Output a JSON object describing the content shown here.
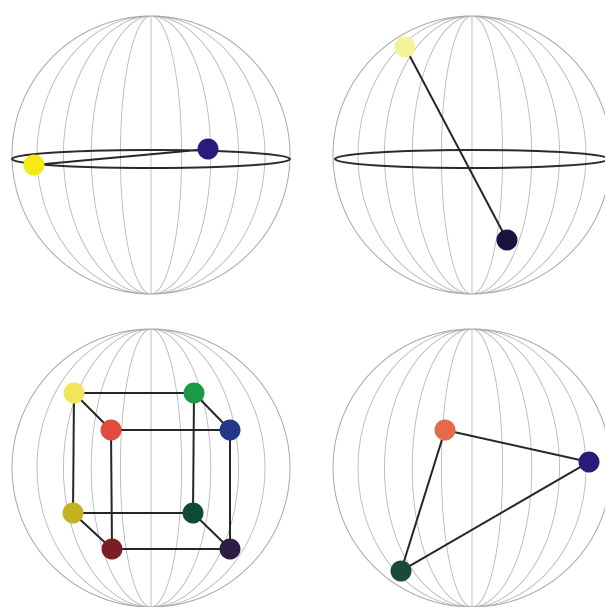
{
  "panels": [
    {
      "id": "top-left",
      "show_equator": true,
      "nodes": [
        {
          "name": "yellow-point",
          "color": "#f5ea14"
        },
        {
          "name": "indigo-point",
          "color": "#2b1a7a"
        }
      ],
      "edges": [
        [
          0,
          1
        ]
      ]
    },
    {
      "id": "top-right",
      "show_equator": true,
      "nodes": [
        {
          "name": "pale-yellow-point",
          "color": "#f7f29a"
        },
        {
          "name": "dark-navy-point",
          "color": "#1c1240"
        }
      ],
      "edges": [
        [
          0,
          1
        ]
      ]
    },
    {
      "id": "bottom-left",
      "show_equator": false,
      "nodes": [
        {
          "name": "yellow-point",
          "color": "#f3e55a"
        },
        {
          "name": "green-point",
          "color": "#1a9a44"
        },
        {
          "name": "red-orange-point",
          "color": "#e14a3c"
        },
        {
          "name": "blue-point",
          "color": "#253789"
        },
        {
          "name": "olive-point",
          "color": "#c4b31e"
        },
        {
          "name": "dark-green-point",
          "color": "#0f4b34"
        },
        {
          "name": "dark-red-point",
          "color": "#7e1c25"
        },
        {
          "name": "dark-purple-point",
          "color": "#2e1d45"
        }
      ],
      "edges": [
        [
          0,
          1
        ],
        [
          0,
          2
        ],
        [
          0,
          4
        ],
        [
          1,
          3
        ],
        [
          1,
          5
        ],
        [
          2,
          3
        ],
        [
          2,
          6
        ],
        [
          3,
          7
        ],
        [
          4,
          5
        ],
        [
          4,
          6
        ],
        [
          5,
          7
        ],
        [
          6,
          7
        ]
      ]
    },
    {
      "id": "bottom-right",
      "show_equator": false,
      "nodes": [
        {
          "name": "orange-point",
          "color": "#e46a4a"
        },
        {
          "name": "indigo-point",
          "color": "#2c1a7a"
        },
        {
          "name": "dark-green-point",
          "color": "#1a4a39"
        }
      ],
      "edges": [
        [
          0,
          1
        ],
        [
          0,
          2
        ],
        [
          1,
          2
        ]
      ]
    }
  ]
}
